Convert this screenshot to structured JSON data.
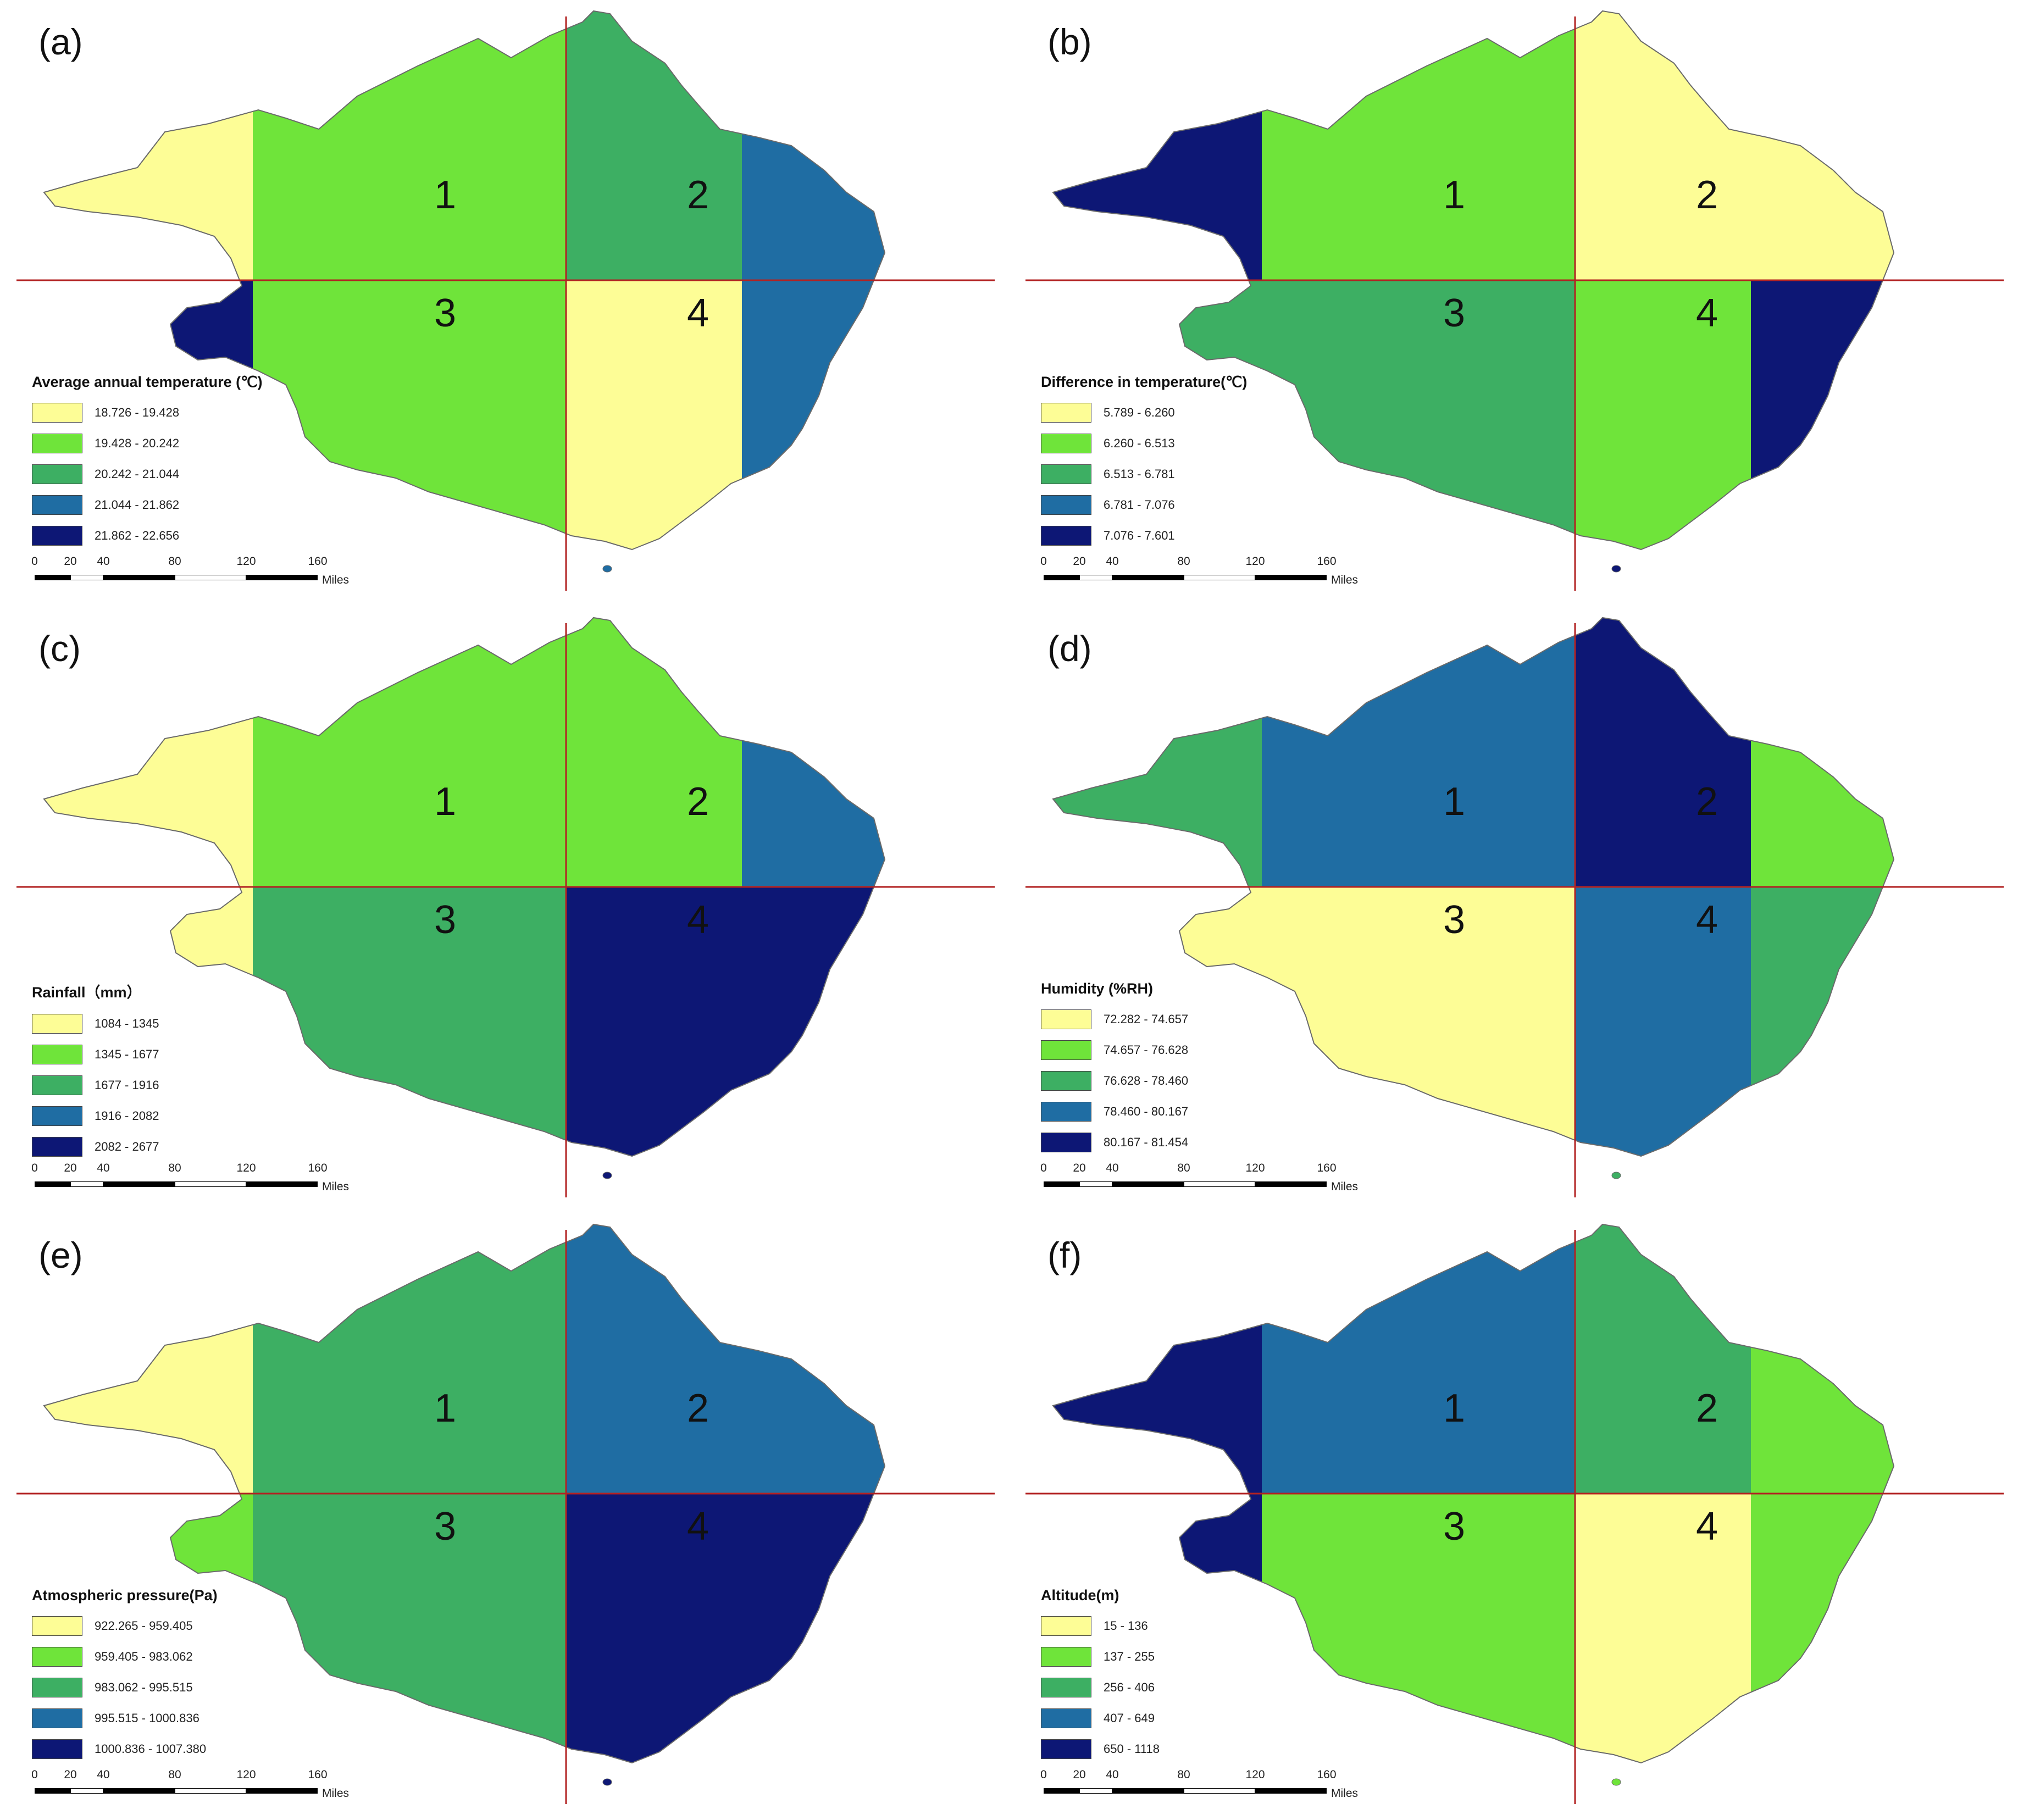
{
  "figure": {
    "scale_ticks": [
      "0",
      "20",
      "40",
      "80",
      "120",
      "160"
    ],
    "scale_units": "Miles",
    "quadrant_labels": [
      "1",
      "2",
      "3",
      "4"
    ],
    "line_color": "#b22222"
  },
  "panels": [
    {
      "label": "(a)",
      "legend_title": "Average annual temperature (℃)",
      "legend": [
        "18.726 - 19.428",
        "19.428 - 20.242",
        "20.242 - 21.044",
        "21.044 - 21.862",
        "21.862 - 22.656"
      ]
    },
    {
      "label": "(b)",
      "legend_title": "Difference in temperature(℃)",
      "legend": [
        "5.789 - 6.260",
        "6.260 - 6.513",
        "6.513 - 6.781",
        "6.781 - 7.076",
        "7.076 - 7.601"
      ]
    },
    {
      "label": "(c)",
      "legend_title": "Rainfall（mm）",
      "legend": [
        "1084 - 1345",
        "1345 - 1677",
        "1677 - 1916",
        "1916 - 2082",
        "2082 - 2677"
      ]
    },
    {
      "label": "(d)",
      "legend_title": "Humidity (%RH)",
      "legend": [
        "72.282 - 74.657",
        "74.657 - 76.628",
        "76.628 - 78.460",
        "78.460 - 80.167",
        "80.167 - 81.454"
      ]
    },
    {
      "label": "(e)",
      "legend_title": "Atmospheric pressure(Pa)",
      "legend": [
        "922.265 - 959.405",
        "959.405 - 983.062",
        "983.062 - 995.515",
        "995.515 - 1000.836",
        "1000.836 - 1007.380"
      ]
    },
    {
      "label": "(f)",
      "legend_title": "Altitude(m)",
      "legend": [
        "15 - 136",
        "137 - 255",
        "256 - 406",
        "407 - 649",
        "650 - 1118"
      ]
    }
  ],
  "palette": [
    "#fdfd96",
    "#6fe43a",
    "#3daf63",
    "#1f6da3",
    "#0d1775"
  ],
  "zone_classes": [
    [
      0,
      1,
      2,
      3,
      4,
      1,
      0,
      3
    ],
    [
      4,
      1,
      0,
      0,
      2,
      2,
      1,
      4
    ],
    [
      0,
      1,
      1,
      3,
      0,
      2,
      4,
      4
    ],
    [
      2,
      3,
      4,
      1,
      0,
      0,
      3,
      2
    ],
    [
      0,
      2,
      3,
      3,
      1,
      2,
      4,
      4
    ],
    [
      4,
      3,
      2,
      1,
      4,
      1,
      0,
      1
    ]
  ]
}
